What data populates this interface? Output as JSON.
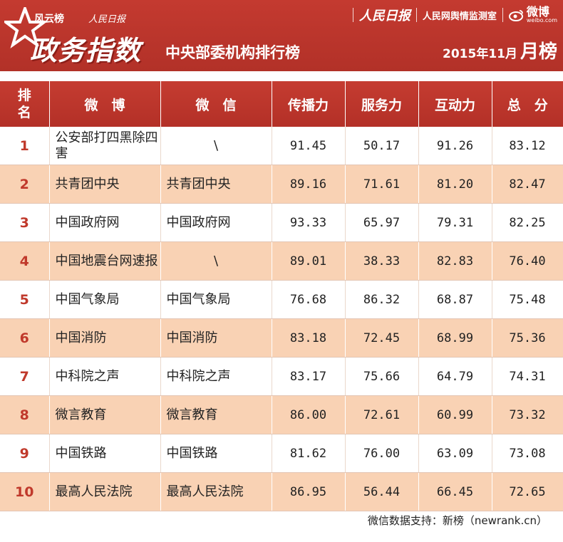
{
  "header": {
    "brand_fengyun": "风云榜",
    "brand_rmrb_small": "人民日报",
    "main_title": "政务指数",
    "subtitle": "中央部委机构排行榜",
    "rmrb_logo": "人民日报",
    "yuqing": "人民网舆情监测室",
    "weibo_cn": "微博",
    "weibo_en": "weibo.com",
    "period_prefix": "2015年11月",
    "period_suffix": "月榜"
  },
  "table": {
    "columns": [
      "排名",
      "微　博",
      "微　信",
      "传播力",
      "服务力",
      "互动力",
      "总　分"
    ],
    "rows": [
      {
        "rank": "1",
        "weibo": "公安部打四黑除四害",
        "weixin": "\\",
        "spread": "91.45",
        "service": "50.17",
        "interact": "91.26",
        "total": "83.12"
      },
      {
        "rank": "2",
        "weibo": "共青团中央",
        "weixin": "共青团中央",
        "spread": "89.16",
        "service": "71.61",
        "interact": "81.20",
        "total": "82.47"
      },
      {
        "rank": "3",
        "weibo": "中国政府网",
        "weixin": "中国政府网",
        "spread": "93.33",
        "service": "65.97",
        "interact": "79.31",
        "total": "82.25"
      },
      {
        "rank": "4",
        "weibo": "中国地震台网速报",
        "weixin": "\\",
        "spread": "89.01",
        "service": "38.33",
        "interact": "82.83",
        "total": "76.40"
      },
      {
        "rank": "5",
        "weibo": "中国气象局",
        "weixin": "中国气象局",
        "spread": "76.68",
        "service": "86.32",
        "interact": "68.87",
        "total": "75.48"
      },
      {
        "rank": "6",
        "weibo": "中国消防",
        "weixin": "中国消防",
        "spread": "83.18",
        "service": "72.45",
        "interact": "68.99",
        "total": "75.36"
      },
      {
        "rank": "7",
        "weibo": "中科院之声",
        "weixin": "中科院之声",
        "spread": "83.17",
        "service": "75.66",
        "interact": "64.79",
        "total": "74.31"
      },
      {
        "rank": "8",
        "weibo": "微言教育",
        "weixin": "微言教育",
        "spread": "86.00",
        "service": "72.61",
        "interact": "60.99",
        "total": "73.32"
      },
      {
        "rank": "9",
        "weibo": "中国铁路",
        "weixin": "中国铁路",
        "spread": "81.62",
        "service": "76.00",
        "interact": "63.09",
        "total": "73.08"
      },
      {
        "rank": "10",
        "weibo": "最高人民法院",
        "weixin": "最高人民法院",
        "spread": "86.95",
        "service": "56.44",
        "interact": "66.45",
        "total": "72.65"
      }
    ]
  },
  "footer": "微信数据支持：新榜（newrank.cn）",
  "colors": {
    "header_red": "#c0392b",
    "row_peach": "#f9d2b4"
  }
}
